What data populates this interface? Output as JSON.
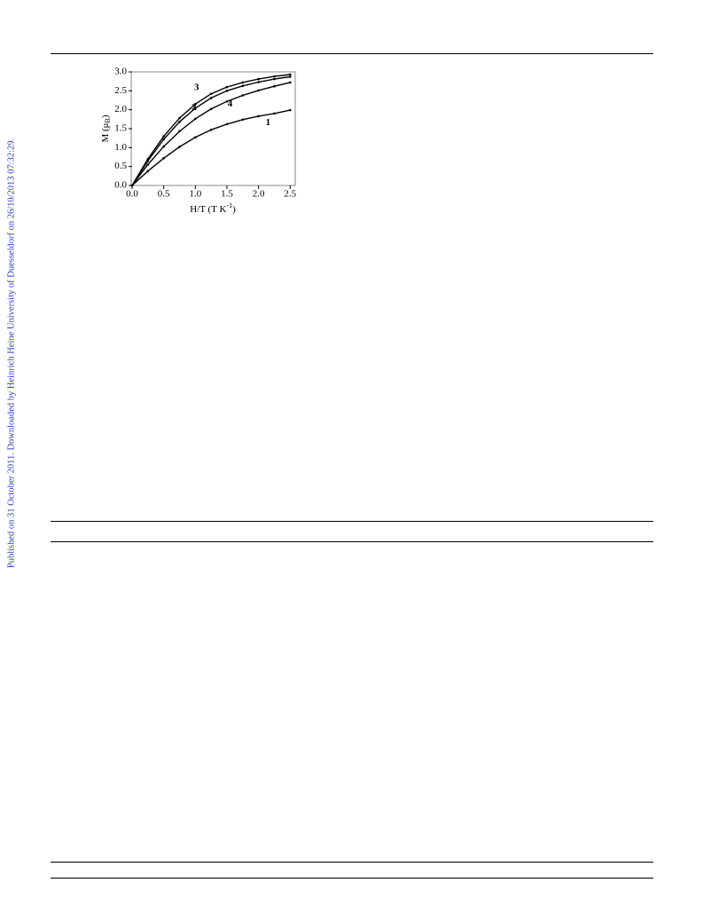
{
  "side_note": "Published on 31 October 2011. Downloaded by Heinrich Heine University of Duesseldorf on 26/10/2013 07:32:29.",
  "chart_data": {
    "type": "line",
    "x_label": [
      "H/T (T K",
      "-1",
      ")"
    ],
    "y_label": [
      "M (μ",
      "B",
      ")"
    ],
    "x": [
      0,
      0.25,
      0.5,
      0.75,
      1.0,
      1.25,
      1.5,
      1.75,
      2.0,
      2.25,
      2.5
    ],
    "series": [
      {
        "name": "1",
        "color": "#000000",
        "values": [
          0,
          0.38,
          0.72,
          1.02,
          1.27,
          1.47,
          1.62,
          1.74,
          1.83,
          1.9,
          1.99
        ]
      },
      {
        "name": "2",
        "color": "#000000",
        "values": [
          0,
          0.65,
          1.22,
          1.68,
          2.04,
          2.31,
          2.5,
          2.63,
          2.73,
          2.81,
          2.87
        ]
      },
      {
        "name": "3",
        "color": "#000000",
        "values": [
          0,
          0.7,
          1.3,
          1.78,
          2.15,
          2.42,
          2.6,
          2.72,
          2.81,
          2.88,
          2.93
        ]
      },
      {
        "name": "4",
        "color": "#000000",
        "values": [
          0,
          0.55,
          1.03,
          1.43,
          1.76,
          2.02,
          2.22,
          2.38,
          2.51,
          2.62,
          2.72
        ]
      }
    ],
    "xlim": [
      0,
      2.58
    ],
    "ylim": [
      0,
      3
    ],
    "xticks": [
      {
        "value": 0,
        "label": "0.0"
      },
      {
        "value": 0.5,
        "label": "0.5"
      },
      {
        "value": 1,
        "label": "1.0"
      },
      {
        "value": 1.5,
        "label": "1.5"
      },
      {
        "value": 2,
        "label": "2.0"
      },
      {
        "value": 2.5,
        "label": "2.5"
      }
    ],
    "yticks": [
      {
        "value": 0,
        "label": "0.0"
      },
      {
        "value": 0.5,
        "label": "0.5"
      },
      {
        "value": 1,
        "label": "1.0"
      },
      {
        "value": 1.5,
        "label": "1.5"
      },
      {
        "value": 2,
        "label": "2.0"
      },
      {
        "value": 2.5,
        "label": "2.5"
      },
      {
        "value": 3,
        "label": "3.0"
      }
    ],
    "grid": false
  }
}
